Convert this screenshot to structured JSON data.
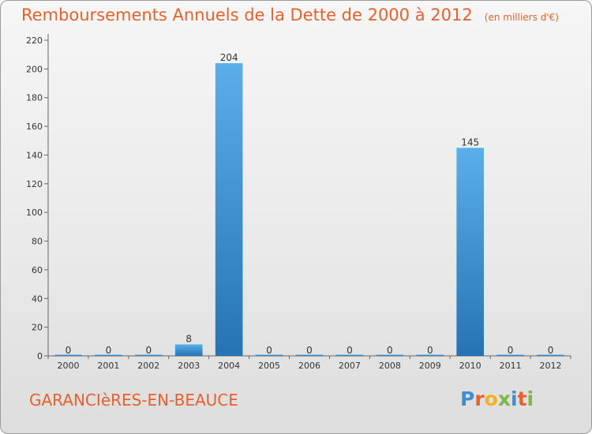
{
  "chart_data": {
    "type": "bar",
    "title": "Remboursements Annuels de la Dette de 2000 à 2012",
    "unit": "(en milliers d'€)",
    "categories": [
      "2000",
      "2001",
      "2002",
      "2003",
      "2004",
      "2005",
      "2006",
      "2007",
      "2008",
      "2009",
      "2010",
      "2011",
      "2012"
    ],
    "values": [
      0,
      0,
      0,
      8,
      204,
      0,
      0,
      0,
      0,
      0,
      145,
      0,
      0
    ],
    "ylim": [
      0,
      220
    ],
    "yticks": [
      0,
      20,
      40,
      60,
      80,
      100,
      120,
      140,
      160,
      180,
      200,
      220
    ],
    "grid": false,
    "bar_color": "#3d97d9"
  },
  "commune": "GARANCIèRES-EN-BEAUCE",
  "logo": {
    "letters": [
      "P",
      "r",
      "o",
      "x",
      "i",
      "t",
      "i"
    ],
    "colors": [
      "#3b8fd6",
      "#e8602c",
      "#f2b320",
      "#7ab648",
      "#3b8fd6",
      "#e8602c",
      "#7ab648"
    ]
  }
}
